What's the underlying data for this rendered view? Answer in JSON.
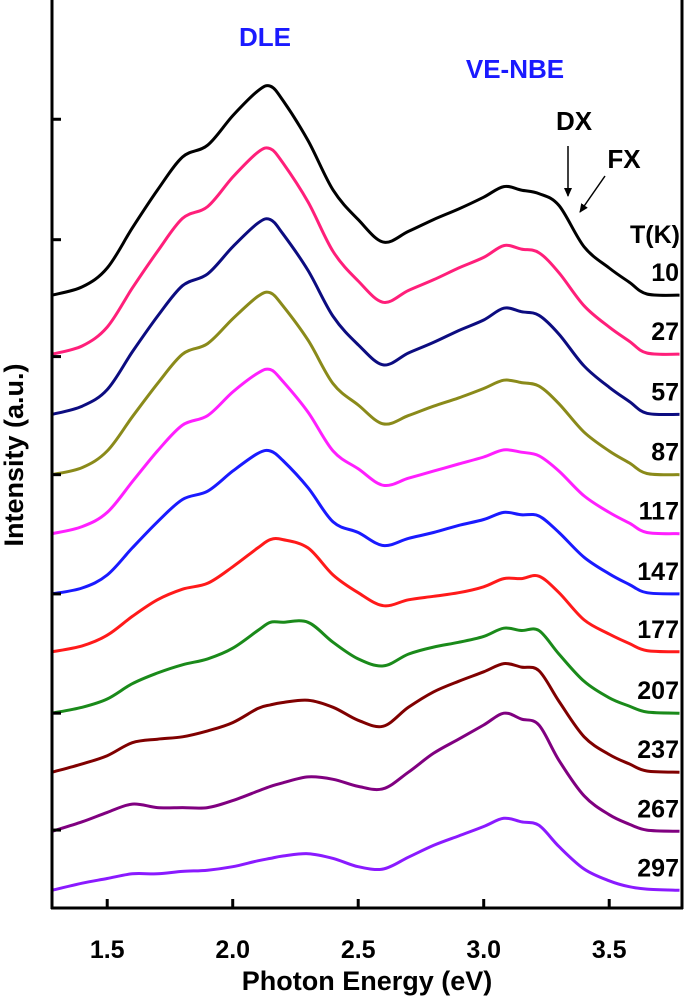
{
  "chart_data": {
    "type": "line",
    "title": "",
    "xlabel": "Photon Energy (eV)",
    "ylabel": "Intensity (a.u.)",
    "xlim": [
      1.28,
      3.79
    ],
    "ylim": [
      0,
      7.69
    ],
    "xticks": [
      1.5,
      2.0,
      2.5,
      3.0,
      3.5
    ],
    "xtick_labels": [
      "1.5",
      "2.0",
      "2.5",
      "3.0",
      "3.5"
    ],
    "yticks": [
      0.66,
      1.65,
      2.66,
      3.67,
      4.67,
      5.66,
      6.68
    ],
    "ytick_labels_shown": false,
    "grid": false,
    "stacked_offset_plot": true,
    "legend_title": "T(K)",
    "legend_placement": "right, inline at curve ends",
    "annotations": {
      "dle": {
        "text": "DLE",
        "color": "#1a1aff"
      },
      "venbe": {
        "text": "VE-NBE",
        "color": "#1a1aff"
      },
      "dx": {
        "text": "DX",
        "color": "#000000",
        "arrow": true
      },
      "fx": {
        "text": "FX",
        "color": "#000000",
        "arrow": true
      }
    },
    "x": [
      1.28,
      1.4,
      1.5,
      1.6,
      1.7,
      1.8,
      1.9,
      2.0,
      2.1,
      2.15,
      2.2,
      2.3,
      2.4,
      2.5,
      2.6,
      2.7,
      2.8,
      2.9,
      3.0,
      3.08,
      3.15,
      3.22,
      3.3,
      3.4,
      3.5,
      3.58,
      3.65,
      3.78
    ],
    "series": [
      {
        "name": "10",
        "color": "#000000",
        "offset": 5.19,
        "values": [
          0,
          0.07,
          0.23,
          0.57,
          0.89,
          1.17,
          1.27,
          1.52,
          1.73,
          1.77,
          1.65,
          1.31,
          0.89,
          0.64,
          0.45,
          0.54,
          0.64,
          0.73,
          0.83,
          0.92,
          0.89,
          0.86,
          0.76,
          0.41,
          0.23,
          0.11,
          0.01,
          0
        ]
      },
      {
        "name": "27",
        "color": "#ff1f7a",
        "offset": 4.69,
        "values": [
          0,
          0.07,
          0.23,
          0.56,
          0.87,
          1.15,
          1.25,
          1.5,
          1.71,
          1.74,
          1.62,
          1.29,
          0.87,
          0.62,
          0.44,
          0.54,
          0.63,
          0.73,
          0.82,
          0.92,
          0.89,
          0.86,
          0.69,
          0.41,
          0.23,
          0.11,
          0.01,
          0
        ]
      },
      {
        "name": "57",
        "color": "#0c0c80",
        "offset": 4.18,
        "values": [
          0,
          0.07,
          0.21,
          0.53,
          0.83,
          1.09,
          1.19,
          1.42,
          1.62,
          1.65,
          1.53,
          1.22,
          0.83,
          0.59,
          0.42,
          0.52,
          0.61,
          0.71,
          0.8,
          0.9,
          0.87,
          0.84,
          0.68,
          0.41,
          0.23,
          0.11,
          0.01,
          0
        ]
      },
      {
        "name": "87",
        "color": "#8a8a1a",
        "offset": 3.67,
        "values": [
          0,
          0.06,
          0.2,
          0.49,
          0.77,
          1.02,
          1.11,
          1.32,
          1.51,
          1.54,
          1.43,
          1.14,
          0.77,
          0.59,
          0.43,
          0.5,
          0.58,
          0.65,
          0.73,
          0.8,
          0.78,
          0.75,
          0.6,
          0.36,
          0.2,
          0.1,
          0.01,
          0
        ]
      },
      {
        "name": "117",
        "color": "#ff1fff",
        "offset": 3.17,
        "values": [
          0,
          0.06,
          0.18,
          0.44,
          0.7,
          0.92,
          1.0,
          1.2,
          1.36,
          1.39,
          1.29,
          1.03,
          0.7,
          0.55,
          0.41,
          0.47,
          0.53,
          0.59,
          0.65,
          0.71,
          0.69,
          0.66,
          0.53,
          0.32,
          0.18,
          0.09,
          0.01,
          0
        ]
      },
      {
        "name": "147",
        "color": "#1a1aff",
        "offset": 2.66,
        "values": [
          0,
          0.05,
          0.16,
          0.39,
          0.61,
          0.8,
          0.87,
          1.04,
          1.19,
          1.21,
          1.13,
          0.9,
          0.61,
          0.52,
          0.41,
          0.47,
          0.52,
          0.58,
          0.63,
          0.69,
          0.67,
          0.66,
          0.52,
          0.31,
          0.17,
          0.08,
          0.01,
          0
        ]
      },
      {
        "name": "177",
        "color": "#ff1a1a",
        "offset": 2.17,
        "values": [
          0,
          0.05,
          0.14,
          0.3,
          0.44,
          0.53,
          0.58,
          0.72,
          0.88,
          0.95,
          0.95,
          0.88,
          0.65,
          0.5,
          0.39,
          0.44,
          0.47,
          0.5,
          0.55,
          0.62,
          0.62,
          0.64,
          0.5,
          0.27,
          0.15,
          0.07,
          0.01,
          0
        ]
      },
      {
        "name": "207",
        "color": "#1a8a1a",
        "offset": 1.65,
        "values": [
          0,
          0.05,
          0.12,
          0.25,
          0.34,
          0.41,
          0.46,
          0.55,
          0.7,
          0.77,
          0.77,
          0.77,
          0.6,
          0.46,
          0.4,
          0.5,
          0.56,
          0.6,
          0.65,
          0.72,
          0.7,
          0.7,
          0.5,
          0.27,
          0.13,
          0.06,
          0.01,
          0
        ]
      },
      {
        "name": "237",
        "color": "#800000",
        "offset": 1.15,
        "values": [
          0,
          0.07,
          0.14,
          0.25,
          0.28,
          0.3,
          0.35,
          0.42,
          0.54,
          0.57,
          0.59,
          0.61,
          0.55,
          0.44,
          0.39,
          0.55,
          0.68,
          0.77,
          0.85,
          0.92,
          0.89,
          0.86,
          0.6,
          0.3,
          0.15,
          0.07,
          0.01,
          0
        ]
      },
      {
        "name": "267",
        "color": "#800080",
        "offset": 0.65,
        "values": [
          0,
          0.08,
          0.16,
          0.23,
          0.2,
          0.2,
          0.2,
          0.26,
          0.34,
          0.38,
          0.41,
          0.46,
          0.44,
          0.38,
          0.36,
          0.5,
          0.66,
          0.78,
          0.9,
          1.0,
          0.95,
          0.9,
          0.6,
          0.3,
          0.14,
          0.06,
          0.01,
          0
        ]
      },
      {
        "name": "297",
        "color": "#8a1aff",
        "offset": 0.15,
        "values": [
          0,
          0.06,
          0.1,
          0.14,
          0.14,
          0.16,
          0.17,
          0.2,
          0.25,
          0.27,
          0.29,
          0.31,
          0.27,
          0.2,
          0.18,
          0.28,
          0.38,
          0.46,
          0.54,
          0.61,
          0.58,
          0.55,
          0.37,
          0.18,
          0.08,
          0.03,
          0.01,
          0
        ]
      }
    ]
  }
}
